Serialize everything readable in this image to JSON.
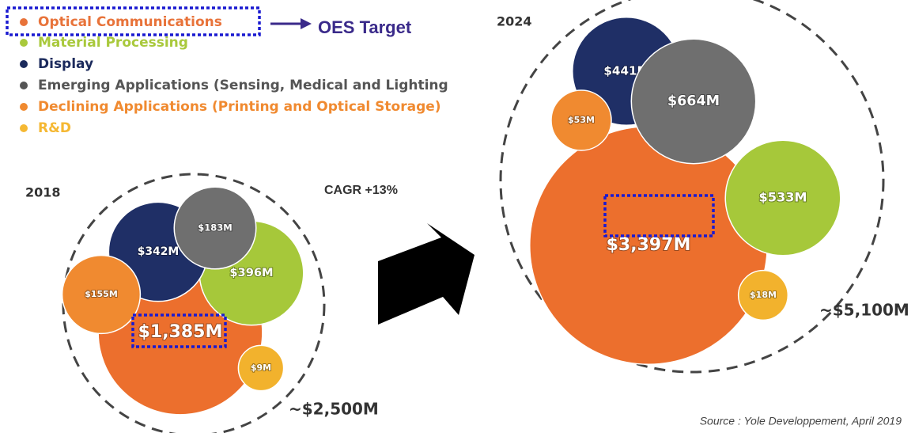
{
  "chart_data": [
    {
      "type": "packed-bubble",
      "title": "2018",
      "total_label": "~$2,500M",
      "categories": [
        "Optical Communications",
        "Material Processing",
        "Display",
        "Emerging Applications (Sensing, Medical and Lighting",
        "Declining Applications (Printing and Optical Storage)",
        "R&D"
      ],
      "values": [
        1385,
        396,
        342,
        183,
        155,
        9
      ],
      "value_labels": [
        "$1,385M",
        "$396M",
        "$342M",
        "$183M",
        "$155M",
        "$9M"
      ],
      "colors": [
        "#ec6f2d",
        "#a6c83a",
        "#1f2f66",
        "#6f6f6f",
        "#f08a30",
        "#f2b22d"
      ]
    },
    {
      "type": "packed-bubble",
      "title": "2024",
      "total_label": "~$5,100M",
      "categories": [
        "Optical Communications",
        "Material Processing",
        "Display",
        "Emerging Applications (Sensing, Medical and Lighting",
        "Declining Applications (Printing and Optical Storage)",
        "R&D"
      ],
      "values": [
        3397,
        533,
        441,
        664,
        53,
        18
      ],
      "value_labels": [
        "$3,397M",
        "$533M",
        "$441M",
        "$664M",
        "$53M",
        "$18M"
      ],
      "colors": [
        "#ec6f2d",
        "#a6c83a",
        "#1f2f66",
        "#6f6f6f",
        "#f08a30",
        "#f2b22d"
      ]
    }
  ],
  "legend_colors": [
    "#e8733a",
    "#a9c93c",
    "#1b2a5c",
    "#555555",
    "#f08a30",
    "#f5b833"
  ],
  "annotations": {
    "target": "OES Target",
    "cagr": "CAGR +13%",
    "source": "Source : Yole Developpement, April 2019"
  }
}
